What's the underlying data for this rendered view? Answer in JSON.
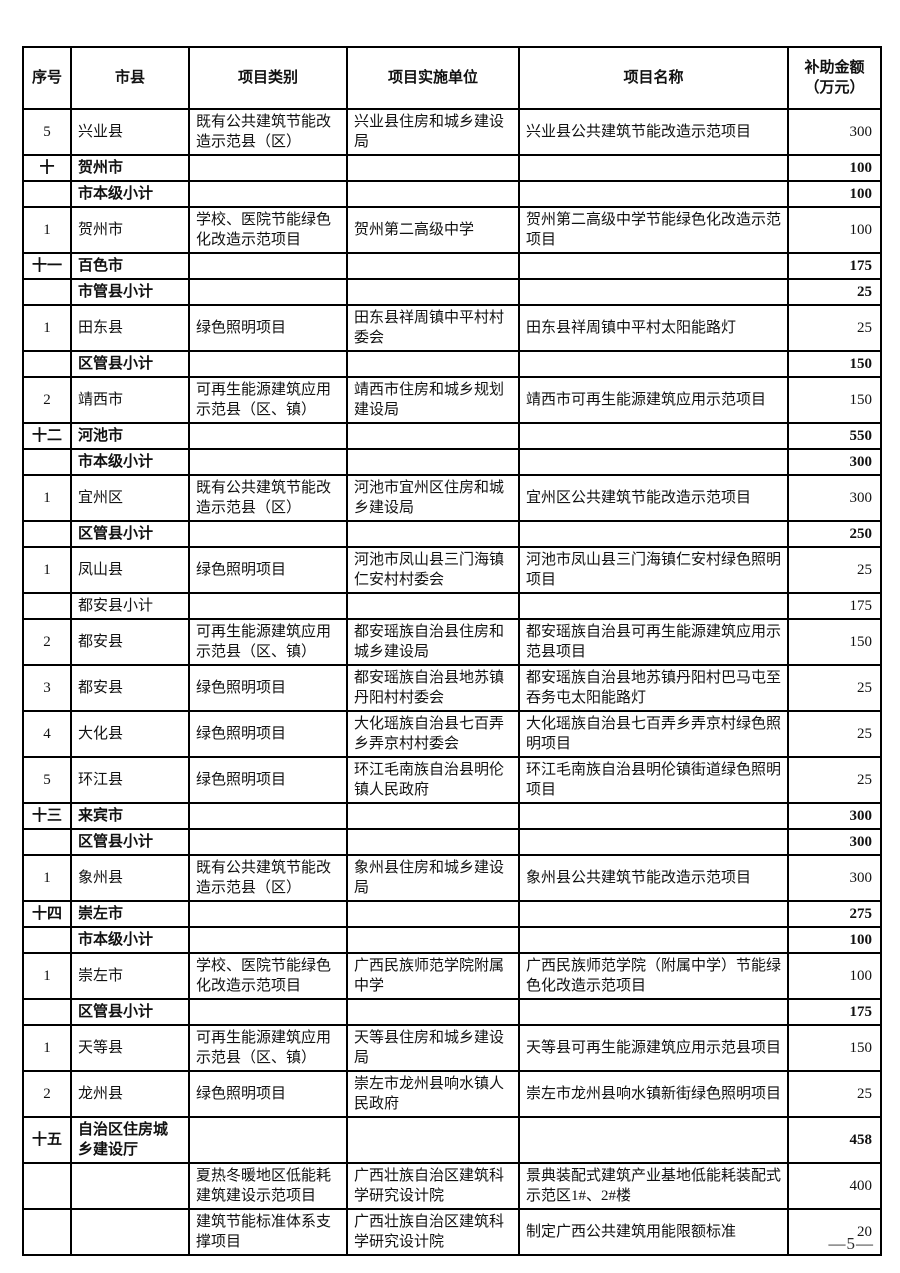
{
  "page": {
    "page_number": "—5—"
  },
  "table": {
    "columns": [
      "序号",
      "市县",
      "项目类别",
      "项目实施单位",
      "项目名称",
      "补助金额\n（万元）"
    ],
    "rows": [
      {
        "no": "5",
        "city": "兴业县",
        "category": "既有公共建筑节能改造示范县（区）",
        "unit": "兴业县住房和城乡建设局",
        "project": "兴业县公共建筑节能改造示范项目",
        "amount": "300",
        "bold": false
      },
      {
        "no": "十",
        "city": "贺州市",
        "category": "",
        "unit": "",
        "project": "",
        "amount": "100",
        "bold": true
      },
      {
        "no": "",
        "city": "市本级小计",
        "category": "",
        "unit": "",
        "project": "",
        "amount": "100",
        "bold": true
      },
      {
        "no": "1",
        "city": "贺州市",
        "category": "学校、医院节能绿色化改造示范项目",
        "unit": "贺州第二高级中学",
        "project": "贺州第二高级中学节能绿色化改造示范项目",
        "amount": "100",
        "bold": false
      },
      {
        "no": "十一",
        "city": "百色市",
        "category": "",
        "unit": "",
        "project": "",
        "amount": "175",
        "bold": true
      },
      {
        "no": "",
        "city": "市管县小计",
        "category": "",
        "unit": "",
        "project": "",
        "amount": "25",
        "bold": true
      },
      {
        "no": "1",
        "city": "田东县",
        "category": "绿色照明项目",
        "unit": "田东县祥周镇中平村村委会",
        "project": "田东县祥周镇中平村太阳能路灯",
        "amount": "25",
        "bold": false
      },
      {
        "no": "",
        "city": "区管县小计",
        "category": "",
        "unit": "",
        "project": "",
        "amount": "150",
        "bold": true
      },
      {
        "no": "2",
        "city": "靖西市",
        "category": "可再生能源建筑应用示范县（区、镇）",
        "unit": "靖西市住房和城乡规划建设局",
        "project": "靖西市可再生能源建筑应用示范项目",
        "amount": "150",
        "bold": false
      },
      {
        "no": "十二",
        "city": "河池市",
        "category": "",
        "unit": "",
        "project": "",
        "amount": "550",
        "bold": true
      },
      {
        "no": "",
        "city": "市本级小计",
        "category": "",
        "unit": "",
        "project": "",
        "amount": "300",
        "bold": true
      },
      {
        "no": "1",
        "city": "宜州区",
        "category": "既有公共建筑节能改造示范县（区）",
        "unit": "河池市宜州区住房和城乡建设局",
        "project": "宜州区公共建筑节能改造示范项目",
        "amount": "300",
        "bold": false
      },
      {
        "no": "",
        "city": "区管县小计",
        "category": "",
        "unit": "",
        "project": "",
        "amount": "250",
        "bold": true
      },
      {
        "no": "1",
        "city": "凤山县",
        "category": "绿色照明项目",
        "unit": "河池市凤山县三门海镇仁安村村委会",
        "project": "河池市凤山县三门海镇仁安村绿色照明项目",
        "amount": "25",
        "bold": false
      },
      {
        "no": "",
        "city": "都安县小计",
        "category": "",
        "unit": "",
        "project": "",
        "amount": "175",
        "bold": false
      },
      {
        "no": "2",
        "city": "都安县",
        "category": "可再生能源建筑应用示范县（区、镇）",
        "unit": "都安瑶族自治县住房和城乡建设局",
        "project": "都安瑶族自治县可再生能源建筑应用示范县项目",
        "amount": "150",
        "bold": false
      },
      {
        "no": "3",
        "city": "都安县",
        "category": "绿色照明项目",
        "unit": "都安瑶族自治县地苏镇丹阳村村委会",
        "project": "都安瑶族自治县地苏镇丹阳村巴马屯至吞务屯太阳能路灯",
        "amount": "25",
        "bold": false
      },
      {
        "no": "4",
        "city": "大化县",
        "category": "绿色照明项目",
        "unit": "大化瑶族自治县七百弄乡弄京村村委会",
        "project": "大化瑶族自治县七百弄乡弄京村绿色照明项目",
        "amount": "25",
        "bold": false
      },
      {
        "no": "5",
        "city": "环江县",
        "category": "绿色照明项目",
        "unit": "环江毛南族自治县明伦镇人民政府",
        "project": "环江毛南族自治县明伦镇街道绿色照明项目",
        "amount": "25",
        "bold": false
      },
      {
        "no": "十三",
        "city": "来宾市",
        "category": "",
        "unit": "",
        "project": "",
        "amount": "300",
        "bold": true
      },
      {
        "no": "",
        "city": "区管县小计",
        "category": "",
        "unit": "",
        "project": "",
        "amount": "300",
        "bold": true
      },
      {
        "no": "1",
        "city": "象州县",
        "category": "既有公共建筑节能改造示范县（区）",
        "unit": "象州县住房和城乡建设局",
        "project": "象州县公共建筑节能改造示范项目",
        "amount": "300",
        "bold": false
      },
      {
        "no": "十四",
        "city": "崇左市",
        "category": "",
        "unit": "",
        "project": "",
        "amount": "275",
        "bold": true
      },
      {
        "no": "",
        "city": "市本级小计",
        "category": "",
        "unit": "",
        "project": "",
        "amount": "100",
        "bold": true
      },
      {
        "no": "1",
        "city": "崇左市",
        "category": "学校、医院节能绿色化改造示范项目",
        "unit": "广西民族师范学院附属中学",
        "project": "广西民族师范学院（附属中学）节能绿色化改造示范项目",
        "amount": "100",
        "bold": false
      },
      {
        "no": "",
        "city": "区管县小计",
        "category": "",
        "unit": "",
        "project": "",
        "amount": "175",
        "bold": true
      },
      {
        "no": "1",
        "city": "天等县",
        "category": "可再生能源建筑应用示范县（区、镇）",
        "unit": "天等县住房和城乡建设局",
        "project": "天等县可再生能源建筑应用示范县项目",
        "amount": "150",
        "bold": false
      },
      {
        "no": "2",
        "city": "龙州县",
        "category": "绿色照明项目",
        "unit": "崇左市龙州县响水镇人民政府",
        "project": "崇左市龙州县响水镇新街绿色照明项目",
        "amount": "25",
        "bold": false
      },
      {
        "no": "十五",
        "city": "自治区住房城乡建设厅",
        "category": "",
        "unit": "",
        "project": "",
        "amount": "458",
        "bold": true
      },
      {
        "no": "",
        "city": "",
        "category": "夏热冬暖地区低能耗建筑建设示范项目",
        "unit": "广西壮族自治区建筑科学研究设计院",
        "project": "景典装配式建筑产业基地低能耗装配式示范区1#、2#楼",
        "amount": "400",
        "bold": false
      },
      {
        "no": "",
        "city": "",
        "category": "建筑节能标准体系支撑项目",
        "unit": "广西壮族自治区建筑科学研究设计院",
        "project": "制定广西公共建筑用能限额标准",
        "amount": "20",
        "bold": false
      }
    ]
  }
}
